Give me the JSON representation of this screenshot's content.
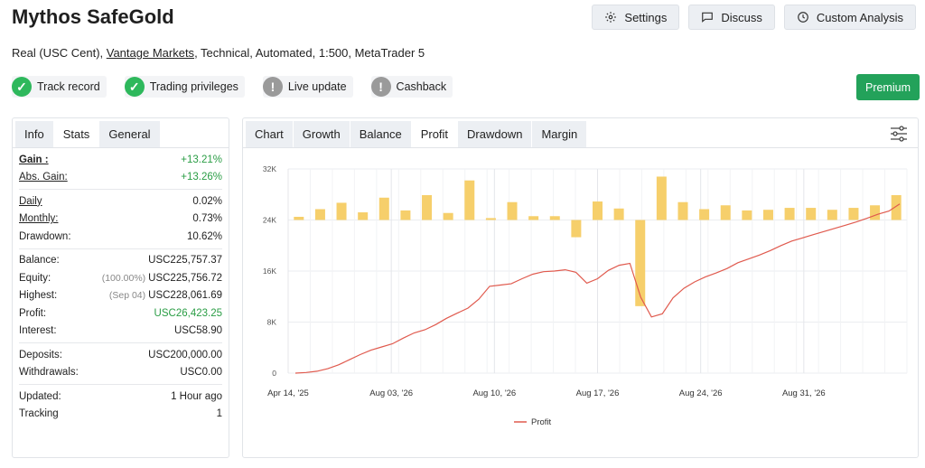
{
  "header": {
    "title": "Mythos SafeGold",
    "subtitle_prefix": "Real (USC Cent), ",
    "broker_link": "Vantage Markets",
    "subtitle_suffix": ", Technical, Automated, 1:500, MetaTrader 5"
  },
  "toolbar": {
    "settings_label": "Settings",
    "discuss_label": "Discuss",
    "custom_analysis_label": "Custom Analysis",
    "premium_label": "Premium"
  },
  "badges": [
    {
      "label": "Track record",
      "status": "ok"
    },
    {
      "label": "Trading privileges",
      "status": "ok"
    },
    {
      "label": "Live update",
      "status": "warn"
    },
    {
      "label": "Cashback",
      "status": "warn"
    }
  ],
  "left_tabs": [
    "Info",
    "Stats",
    "General"
  ],
  "stats": {
    "gain_label": "Gain :",
    "gain": "+13.21%",
    "abs_gain_label": "Abs. Gain:",
    "abs_gain": "+13.26%",
    "daily_label": "Daily",
    "daily": "0.02%",
    "monthly_label": "Monthly:",
    "monthly": "0.73%",
    "drawdown_label": "Drawdown:",
    "drawdown": "10.62%",
    "balance_label": "Balance:",
    "balance": "USC225,757.37",
    "equity_label": "Equity:",
    "equity_note": "(100.00%)",
    "equity": "USC225,756.72",
    "highest_label": "Highest:",
    "highest_note": "(Sep 04)",
    "highest": "USC228,061.69",
    "profit_label": "Profit:",
    "profit": "USC26,423.25",
    "interest_label": "Interest:",
    "interest": "USC58.90",
    "deposits_label": "Deposits:",
    "deposits": "USC200,000.00",
    "withdrawals_label": "Withdrawals:",
    "withdrawals": "USC0.00",
    "updated_label": "Updated:",
    "updated": "1 Hour ago",
    "tracking_label": "Tracking",
    "tracking": "1"
  },
  "chart_tabs": [
    "Chart",
    "Growth",
    "Balance",
    "Profit",
    "Drawdown",
    "Margin"
  ],
  "colors": {
    "accent_green": "#23a25a",
    "bar": "#f6cf6b",
    "line": "#e05a4e"
  },
  "chart_data": {
    "type": "bar",
    "x_tick_labels": [
      "Apr 14, '25",
      "Aug 03, '26",
      "Aug 10, '26",
      "Aug 17, '26",
      "Aug 24, '26",
      "Aug 31, '26"
    ],
    "y_tick_labels": [
      "0",
      "8K",
      "16K",
      "24K",
      "32K"
    ],
    "ylim": [
      0,
      32000
    ],
    "bar_baseline": 24000,
    "legend": [
      "Profit"
    ],
    "bar_values": [
      24500,
      25700,
      26700,
      25200,
      27500,
      25500,
      27900,
      25100,
      30200,
      24300,
      26800,
      24600,
      24600,
      21300,
      26900,
      25800,
      10500,
      30800,
      26800,
      25700,
      26300,
      25500,
      25600,
      25900,
      25900,
      25600,
      25900,
      26300,
      27900
    ],
    "series": [
      {
        "name": "Profit",
        "x": [
          0,
          0.5,
          1,
          1.5,
          2,
          2.5,
          3,
          3.5,
          4,
          4.5,
          5,
          5.5,
          6,
          6.5,
          7,
          7.5,
          8,
          8.5,
          9,
          9.5,
          10,
          10.5,
          11,
          11.5,
          12,
          12.5,
          13,
          13.5,
          14,
          14.5,
          15,
          15.5,
          16,
          16.5,
          17,
          17.5,
          18,
          18.5,
          19,
          19.5,
          20,
          20.5,
          21,
          21.5,
          22,
          22.5,
          23,
          23.5,
          24,
          24.5,
          25,
          25.5,
          26,
          26.5,
          27,
          27.5,
          28
        ],
        "values": [
          0,
          100,
          300,
          700,
          1300,
          2100,
          2900,
          3600,
          4100,
          4600,
          5500,
          6300,
          6800,
          7600,
          8600,
          9400,
          10200,
          11600,
          13600,
          13800,
          14000,
          14800,
          15500,
          15900,
          16000,
          16200,
          15800,
          14100,
          14800,
          16100,
          16900,
          17200,
          11900,
          8800,
          9300,
          11800,
          13300,
          14300,
          15100,
          15700,
          16400,
          17300,
          17900,
          18500,
          19200,
          20000,
          20700,
          21200,
          21700,
          22200,
          22700,
          23200,
          23700,
          24300,
          24900,
          25400,
          26500
        ]
      }
    ]
  }
}
